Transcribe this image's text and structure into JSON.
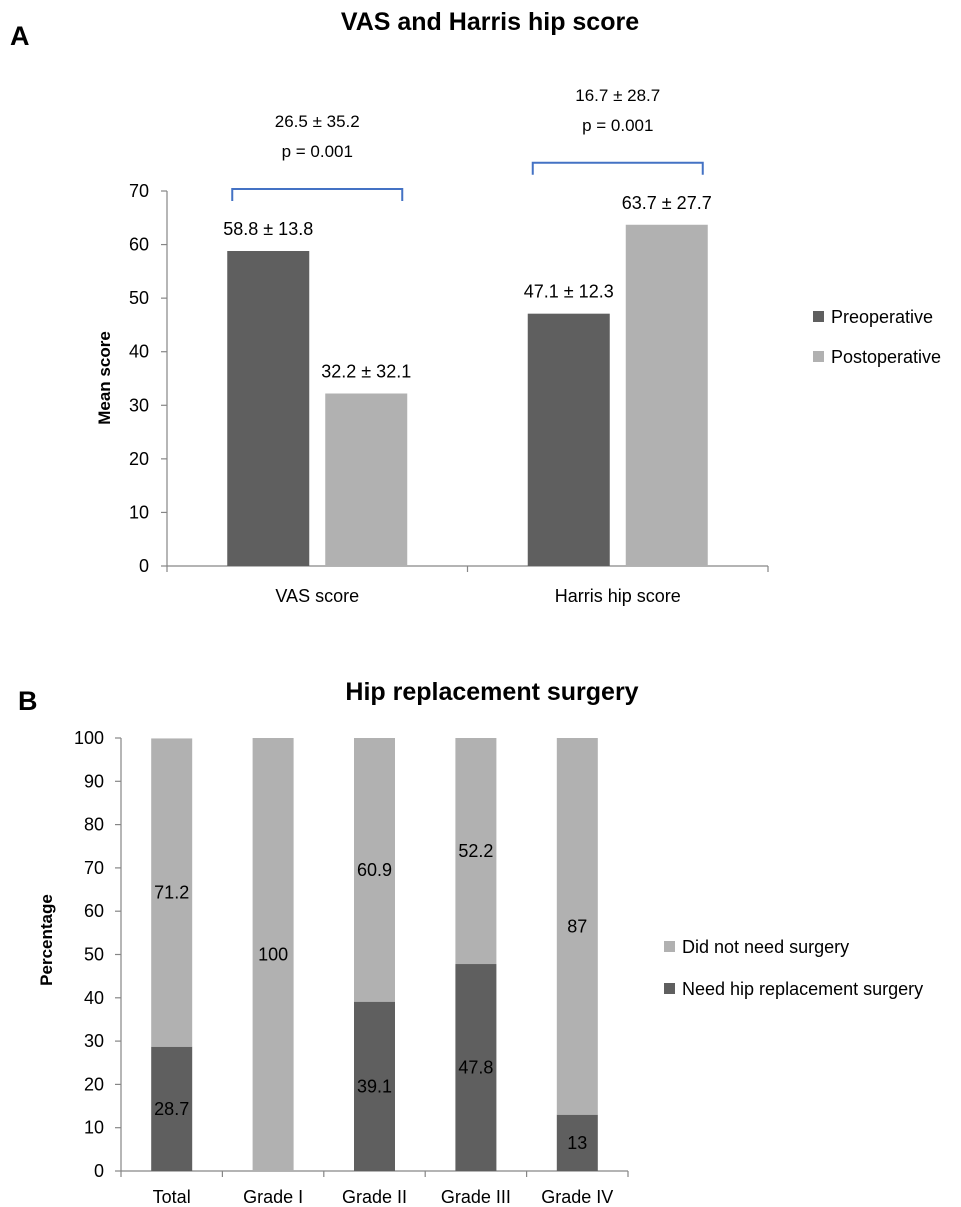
{
  "panel_a": {
    "letter": "A"
  },
  "panel_b": {
    "letter": "B"
  },
  "colors": {
    "preoperative": "#5f5f5f",
    "postoperative": "#b1b1b1",
    "need_surgery": "#5f5f5f",
    "no_surgery": "#b1b1b1",
    "bracket": "#4472c4",
    "axis": "#868686"
  },
  "chart_data": [
    {
      "type": "bar",
      "title": "VAS and Harris hip score",
      "xlabel": "",
      "ylabel": "Mean score",
      "ylim": [
        0,
        70
      ],
      "yticks": [
        0,
        10,
        20,
        30,
        40,
        50,
        60,
        70
      ],
      "grid": false,
      "legend_position": "right",
      "categories": [
        "VAS score",
        "Harris hip score"
      ],
      "series": [
        {
          "name": "Preoperative",
          "values": [
            58.8,
            47.1
          ],
          "labels": [
            "58.8 ± 13.8",
            "47.1 ± 12.3"
          ]
        },
        {
          "name": "Postoperative",
          "values": [
            32.2,
            63.7
          ],
          "labels": [
            "32.2 ± 32.1",
            "63.7 ± 27.7"
          ]
        }
      ],
      "annotations": [
        {
          "category": "VAS score",
          "lines": [
            "26.5 ± 35.2",
            "p = 0.001"
          ]
        },
        {
          "category": "Harris hip score",
          "lines": [
            "16.7 ± 28.7",
            "p = 0.001"
          ]
        }
      ]
    },
    {
      "type": "bar",
      "stacked": true,
      "title": "Hip replacement surgery",
      "xlabel": "",
      "ylabel": "Percentage",
      "ylim": [
        0,
        100
      ],
      "yticks": [
        0,
        10,
        20,
        30,
        40,
        50,
        60,
        70,
        80,
        90,
        100
      ],
      "grid": false,
      "legend_position": "right",
      "categories": [
        "Total",
        "Grade I",
        "Grade II",
        "Grade III",
        "Grade IV"
      ],
      "series": [
        {
          "name": "Need hip replacement surgery",
          "values": [
            28.7,
            0,
            39.1,
            47.8,
            13
          ],
          "labels": [
            "28.7",
            "",
            "39.1",
            "47.8",
            "13"
          ]
        },
        {
          "name": "Did not need surgery",
          "values": [
            71.2,
            100,
            60.9,
            52.2,
            87
          ],
          "labels": [
            "71.2",
            "100",
            "60.9",
            "52.2",
            "87"
          ]
        }
      ]
    }
  ]
}
